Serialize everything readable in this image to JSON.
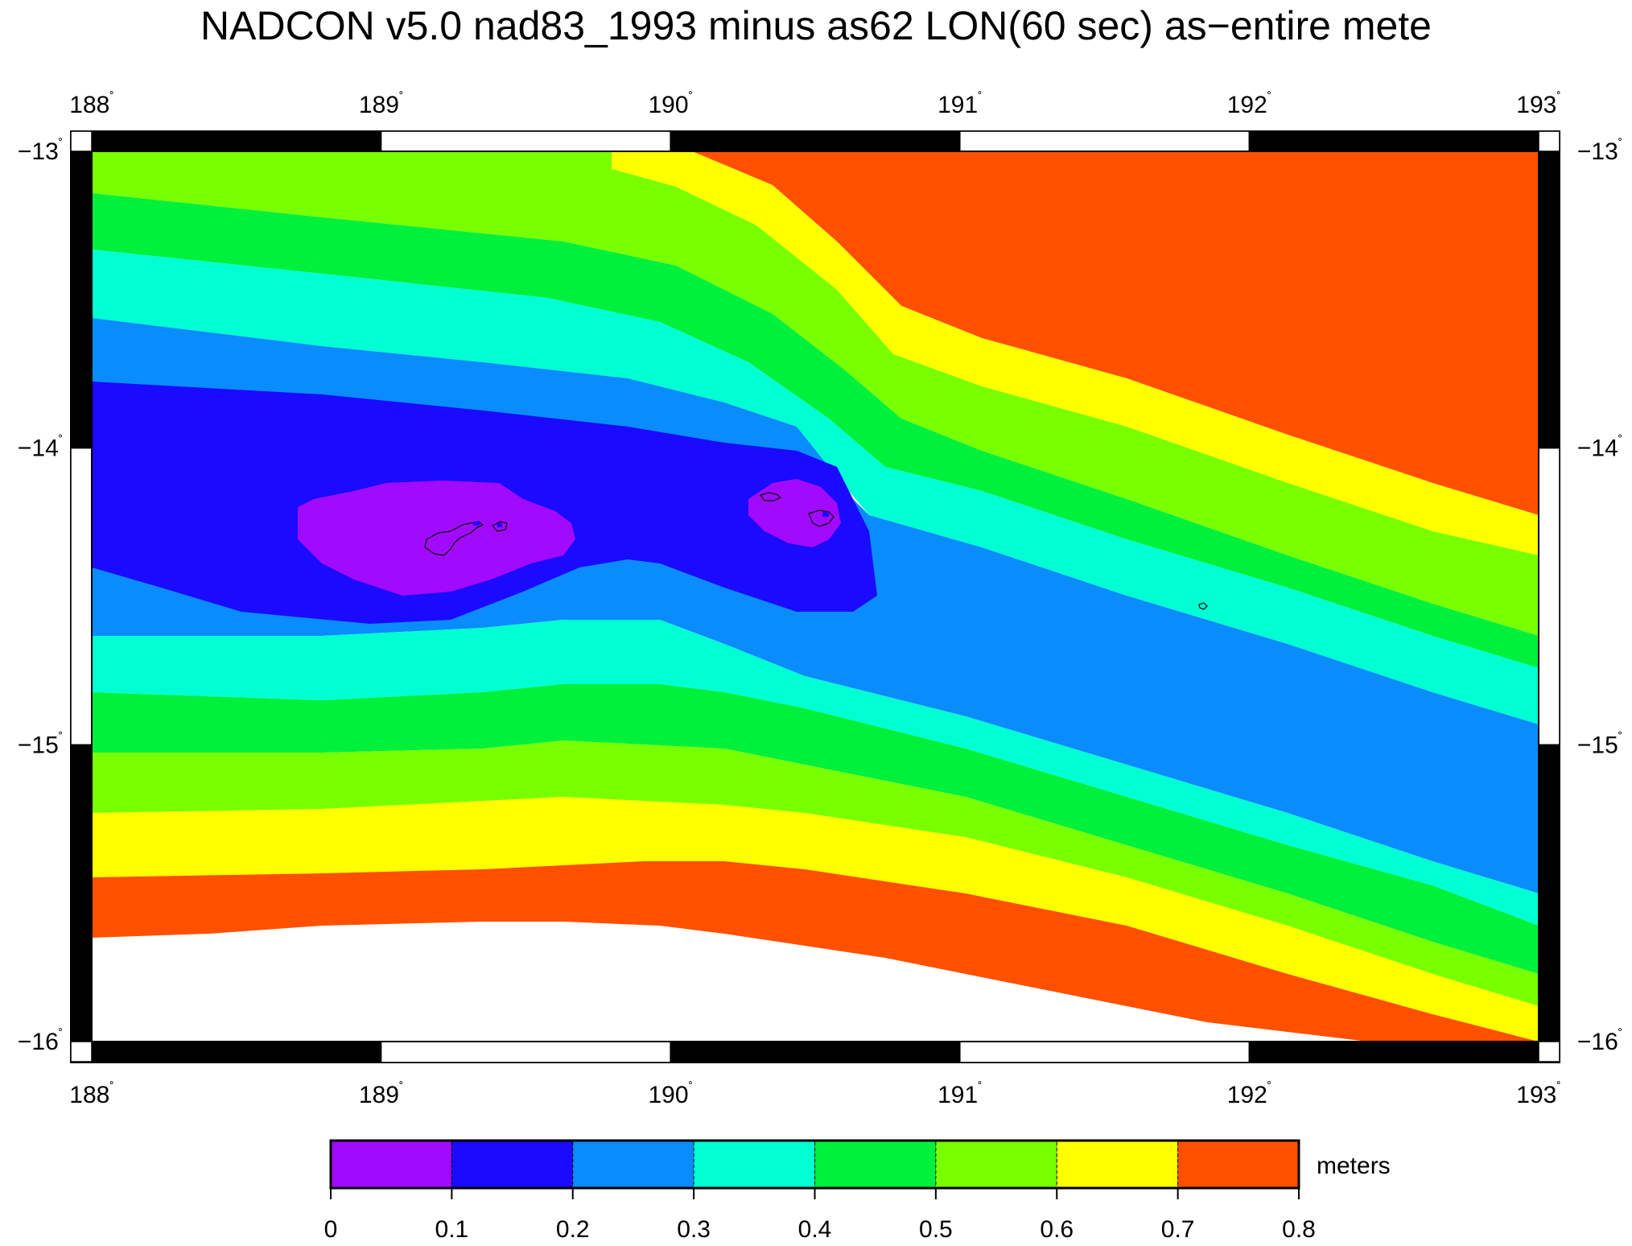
{
  "title": "NADCON v5.0 nad83_1993 minus as62 LON(60 sec) as−entire mete",
  "map": {
    "lon_range": [
      188,
      193
    ],
    "lat_range": [
      -16,
      -13
    ],
    "lon_ticks": [
      "188",
      "189",
      "190",
      "191",
      "192",
      "193"
    ],
    "lat_ticks": [
      "−13",
      "−14",
      "−15",
      "−16"
    ],
    "degree_symbol": "˚",
    "contour_levels": [
      0,
      0.1,
      0.2,
      0.3,
      0.4,
      0.5,
      0.6,
      0.7,
      0.8
    ]
  },
  "colorbar": {
    "unit_label": "meters",
    "tick_labels": [
      "0",
      "0.1",
      "0.2",
      "0.3",
      "0.4",
      "0.5",
      "0.6",
      "0.7",
      "0.8"
    ],
    "colors": [
      "#a20aff",
      "#1a0aff",
      "#0a8cff",
      "#00ffd2",
      "#00f03c",
      "#78ff00",
      "#ffff00",
      "#ff5000"
    ]
  }
}
